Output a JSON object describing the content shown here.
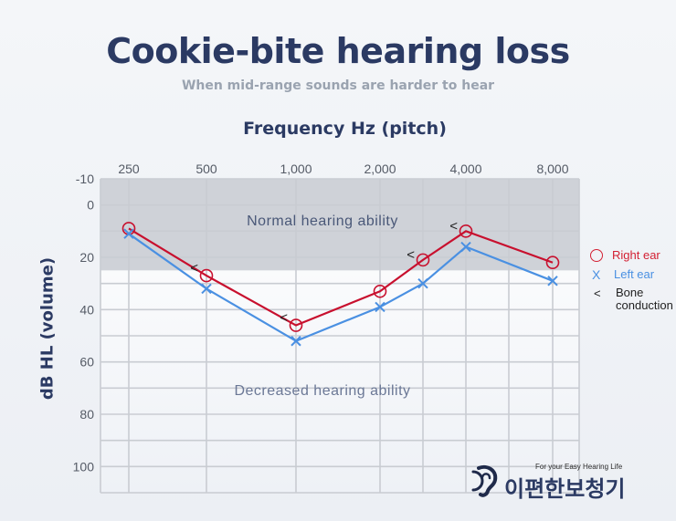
{
  "header": {
    "title": "Cookie-bite hearing loss",
    "subtitle": "When mid-range sounds are harder to hear"
  },
  "chart_data": {
    "type": "line",
    "title": "Cookie-bite hearing loss",
    "subtitle": "When mid-range sounds are harder to hear",
    "xlabel": "Frequency Hz (pitch)",
    "ylabel": "dB HL  (volume)",
    "x_tick_labels": [
      "250",
      "500",
      "1,000",
      "2,000",
      "",
      "4,000",
      "",
      "8,000"
    ],
    "x": [
      250,
      500,
      1000,
      2000,
      3000,
      4000,
      6000,
      8000
    ],
    "y_tick_labels": [
      "-10",
      "0",
      "20",
      "40",
      "60",
      "80",
      "100"
    ],
    "y_tick_values": [
      -10,
      0,
      20,
      40,
      60,
      80,
      100
    ],
    "ylim": [
      -10,
      110
    ],
    "y_inverted": true,
    "grid": true,
    "legend_position": "right",
    "regions": [
      {
        "label": "Normal hearing ability",
        "from": -10,
        "to": 25,
        "color": "#cfd2d8"
      },
      {
        "label": "Decreased hearing ability",
        "from": 25,
        "to": 110,
        "color": "#ffffff"
      }
    ],
    "series": [
      {
        "name": "Right ear",
        "marker": "circle",
        "color": "#c8102e",
        "points": [
          [
            250,
            9
          ],
          [
            500,
            27
          ],
          [
            1000,
            46
          ],
          [
            2000,
            33
          ],
          [
            3000,
            21
          ],
          [
            4000,
            10
          ],
          [
            8000,
            22
          ]
        ]
      },
      {
        "name": "Left ear",
        "marker": "x",
        "color": "#4a90e2",
        "points": [
          [
            250,
            11
          ],
          [
            500,
            32
          ],
          [
            1000,
            52
          ],
          [
            2000,
            39
          ],
          [
            3000,
            30
          ],
          [
            4000,
            16
          ],
          [
            8000,
            29
          ]
        ]
      },
      {
        "name": "Bone conduction",
        "marker": "<",
        "color": "#222222",
        "points": [
          [
            500,
            25
          ],
          [
            1000,
            44
          ],
          [
            3000,
            20
          ],
          [
            4000,
            9
          ]
        ]
      }
    ]
  },
  "legend": {
    "right_ear": "Right ear",
    "left_ear": "Left ear",
    "bone_symbol": "<",
    "bone_conduction": "Bone conduction",
    "circle_symbol": "",
    "x_symbol": "X"
  },
  "brand": {
    "tagline": "For your Easy Hearing Life",
    "name": "이편한보청기",
    "logo_icon": "ear-icon"
  }
}
